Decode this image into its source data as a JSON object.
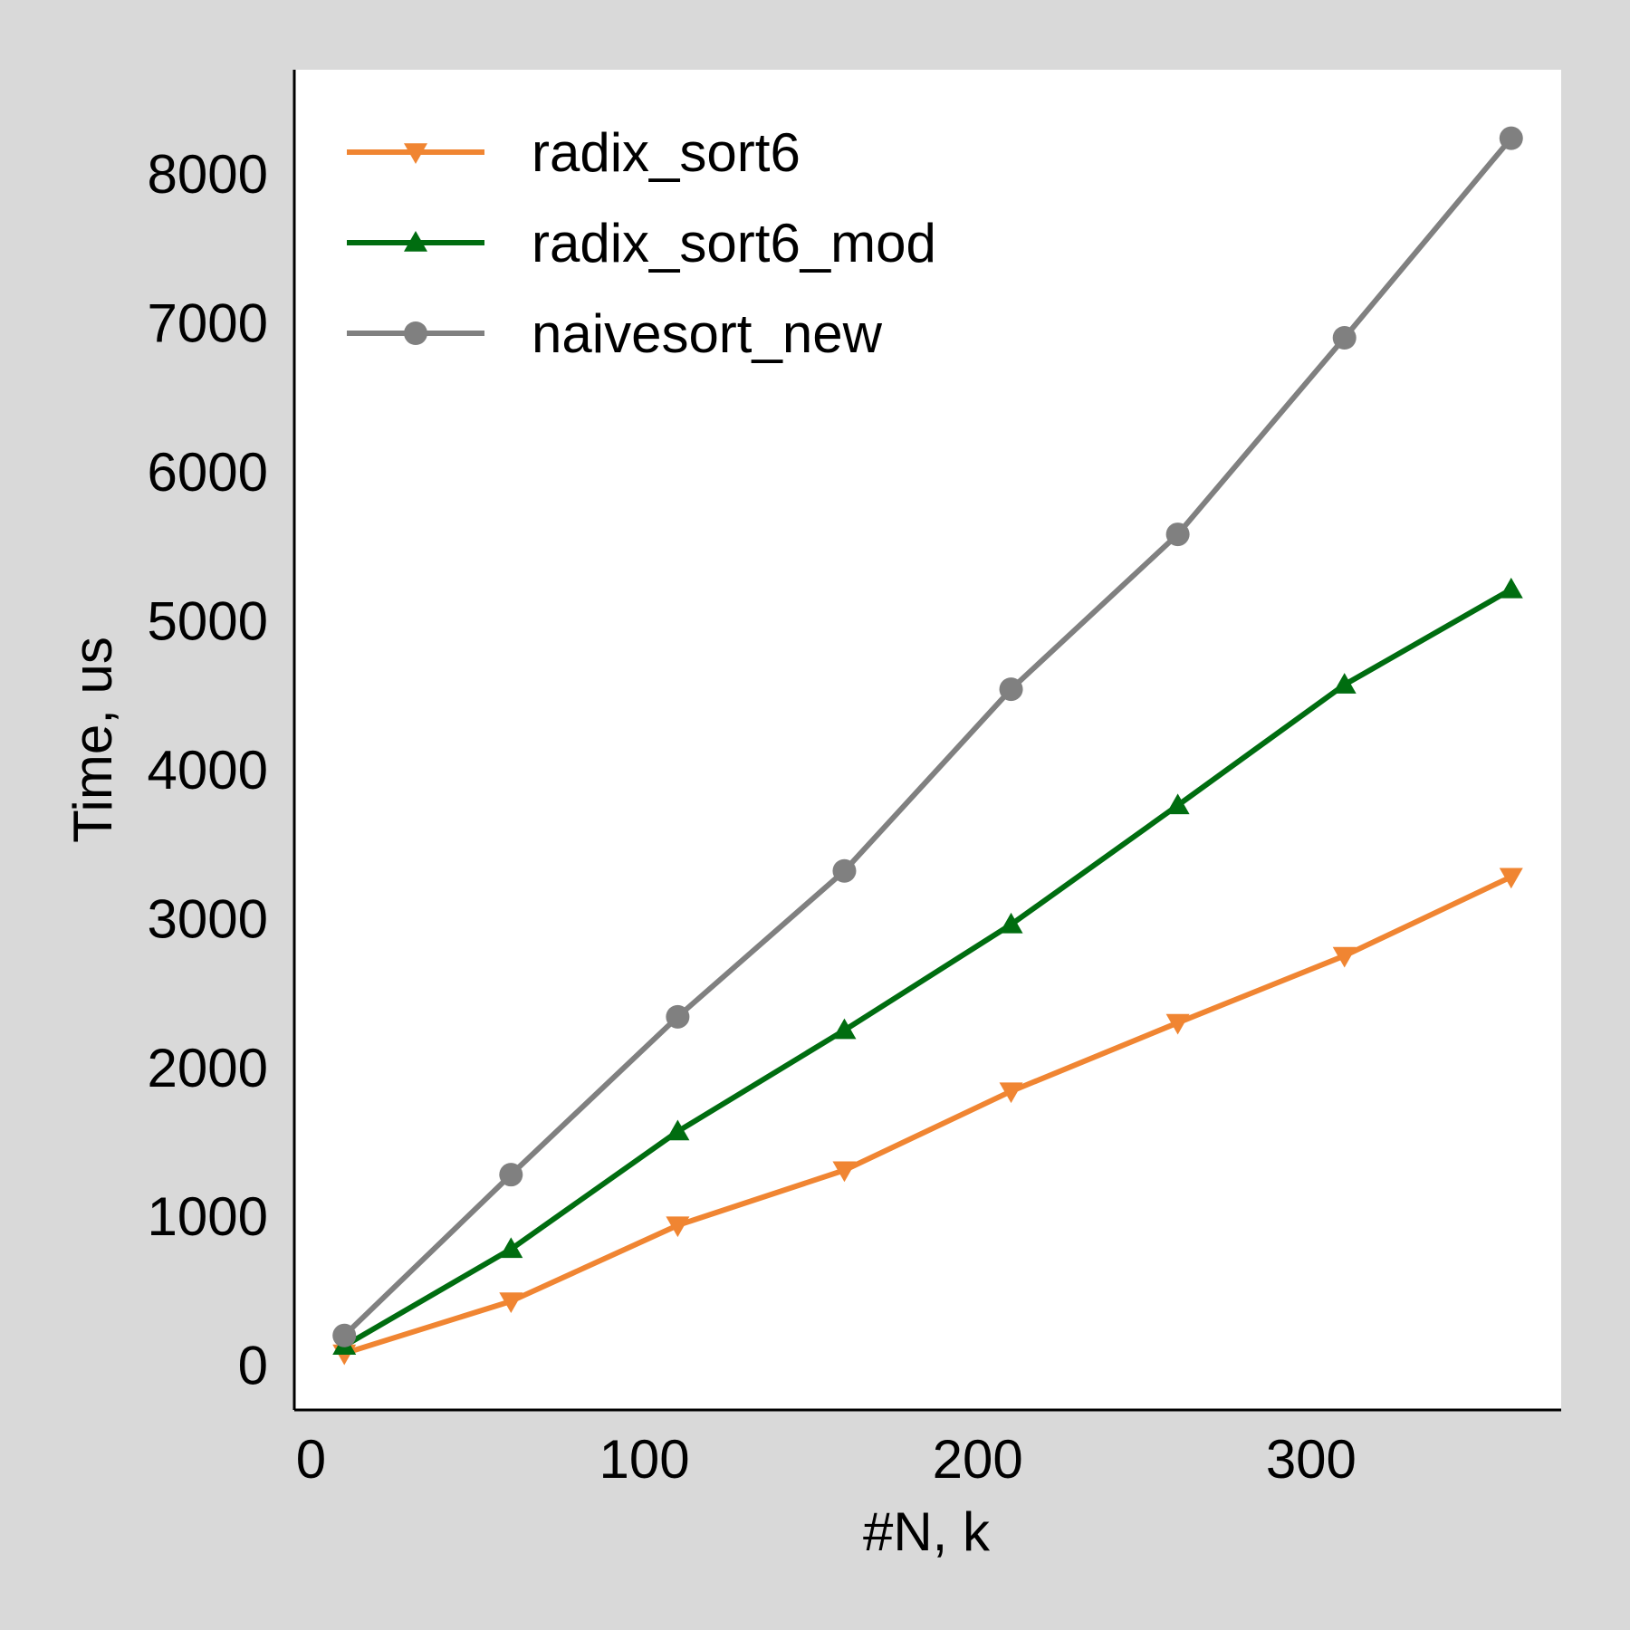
{
  "chart_data": {
    "type": "line",
    "xlabel": "#N, k",
    "ylabel": "Time,  us",
    "xlim": [
      -5,
      375
    ],
    "ylim": [
      -300,
      8700
    ],
    "xticks": [
      0,
      100,
      200,
      300
    ],
    "yticks": [
      0,
      1000,
      2000,
      3000,
      4000,
      5000,
      6000,
      7000,
      8000
    ],
    "grid": false,
    "legend_position": "top-left",
    "x": [
      10,
      60,
      110,
      160,
      210,
      260,
      310,
      360
    ],
    "series": [
      {
        "name": "radix_sort6",
        "color": "#f08532",
        "marker": "triangle-down",
        "values": [
          80,
          430,
          940,
          1310,
          1840,
          2300,
          2750,
          3280
        ]
      },
      {
        "name": "radix_sort6_mod",
        "color": "#006d10",
        "marker": "triangle-up",
        "values": [
          130,
          780,
          1570,
          2250,
          2960,
          3760,
          4570,
          5210
        ]
      },
      {
        "name": "naivesort_new",
        "color": "#808080",
        "marker": "circle",
        "values": [
          200,
          1280,
          2340,
          3320,
          4540,
          5580,
          6900,
          8240
        ]
      }
    ]
  }
}
